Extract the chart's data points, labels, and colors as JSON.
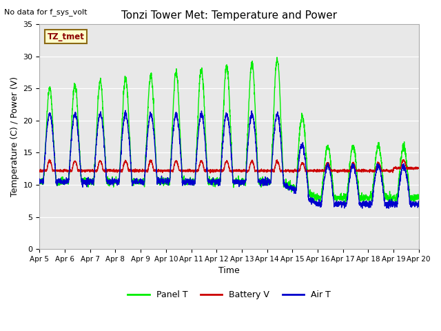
{
  "title": "Tonzi Tower Met: Temperature and Power",
  "xlabel": "Time",
  "ylabel": "Temperature (C) / Power (V)",
  "ylim": [
    0,
    35
  ],
  "xtick_labels": [
    "Apr 5",
    "Apr 6",
    "Apr 7",
    "Apr 8",
    "Apr 9",
    "Apr 10",
    "Apr 11",
    "Apr 12",
    "Apr 13",
    "Apr 14",
    "Apr 15",
    "Apr 16",
    "Apr 17",
    "Apr 18",
    "Apr 19",
    "Apr 20"
  ],
  "no_data_text": "No data for f_sys_volt",
  "annotation_text": "TZ_tmet",
  "bg_color": "#e8e8e8",
  "panel_color": "#00ee00",
  "battery_color": "#cc0000",
  "air_color": "#0000cc",
  "legend_labels": [
    "Panel T",
    "Battery V",
    "Air T"
  ],
  "yticks": [
    0,
    5,
    10,
    15,
    20,
    25,
    30,
    35
  ],
  "figsize": [
    6.4,
    4.8
  ],
  "dpi": 100
}
